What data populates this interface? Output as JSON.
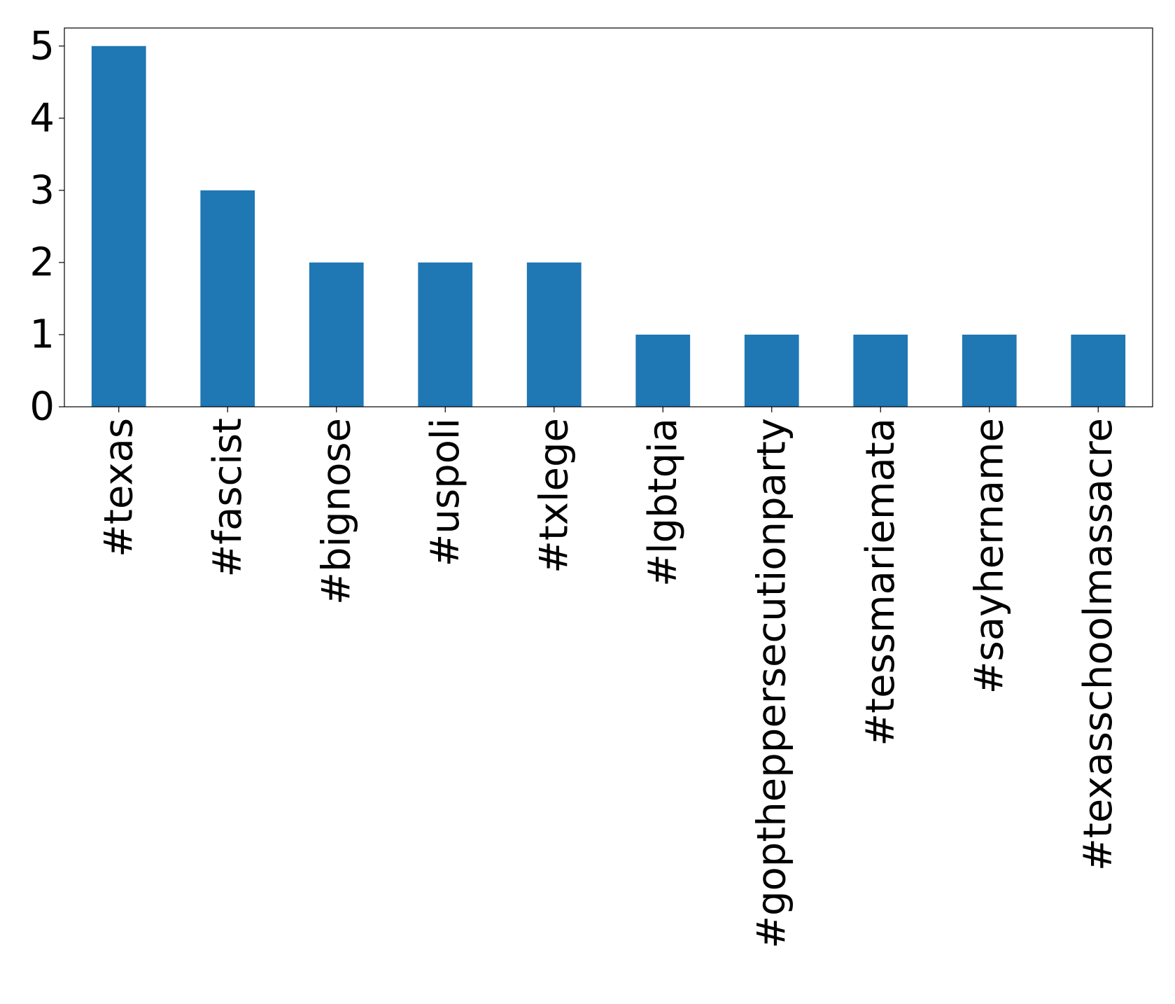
{
  "chart_data": {
    "type": "bar",
    "categories": [
      "#texas",
      "#fascist",
      "#bignose",
      "#uspoli",
      "#txlege",
      "#lgbtqia",
      "#goptheppersecutionparty",
      "#tessmariemata",
      "#sayhername",
      "#texasschoolmassacre"
    ],
    "values": [
      5,
      3,
      2,
      2,
      2,
      1,
      1,
      1,
      1,
      1
    ],
    "color": "#1f77b4",
    "ylim": [
      0,
      5.25
    ],
    "yticks": [
      0,
      1,
      2,
      3,
      4,
      5
    ],
    "grid": false
  }
}
